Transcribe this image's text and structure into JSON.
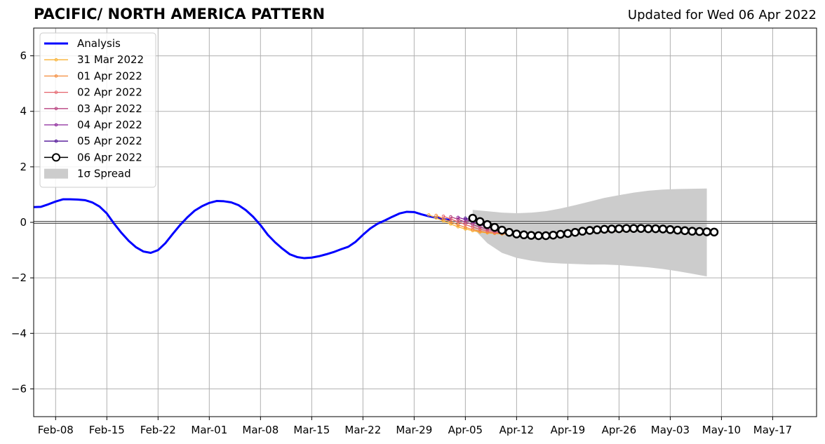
{
  "chart_data": {
    "type": "line",
    "title": "PACIFIC/ NORTH AMERICA PATTERN",
    "subtitle": "Updated for Wed 06 Apr 2022",
    "xlabel": "",
    "ylabel": "",
    "xlim": [
      "2022-02-05",
      "2022-05-23"
    ],
    "ylim": [
      -7,
      7
    ],
    "yticks": [
      -6,
      -4,
      -2,
      0,
      2,
      4,
      6
    ],
    "ytick_labels": [
      "−6",
      "−4",
      "−2",
      "0",
      "2",
      "4",
      "6"
    ],
    "xticks": [
      "2022-02-08",
      "2022-02-15",
      "2022-02-22",
      "2022-03-01",
      "2022-03-08",
      "2022-03-15",
      "2022-03-22",
      "2022-03-29",
      "2022-04-05",
      "2022-04-12",
      "2022-04-19",
      "2022-04-26",
      "2022-05-03",
      "2022-05-10",
      "2022-05-17"
    ],
    "xtick_labels": [
      "Feb-08",
      "Feb-15",
      "Feb-22",
      "Mar-01",
      "Mar-08",
      "Mar-15",
      "Mar-22",
      "Mar-29",
      "Apr-05",
      "Apr-12",
      "Apr-19",
      "Apr-26",
      "May-03",
      "May-10",
      "May-17"
    ],
    "grid": true,
    "legend_position": "top-left",
    "zero_line": true,
    "analysis": {
      "name": "Analysis",
      "color": "#0000ff",
      "x": [
        "2022-02-05",
        "2022-02-06",
        "2022-02-07",
        "2022-02-08",
        "2022-02-09",
        "2022-02-10",
        "2022-02-11",
        "2022-02-12",
        "2022-02-13",
        "2022-02-14",
        "2022-02-15",
        "2022-02-16",
        "2022-02-17",
        "2022-02-18",
        "2022-02-19",
        "2022-02-20",
        "2022-02-21",
        "2022-02-22",
        "2022-02-23",
        "2022-02-24",
        "2022-02-25",
        "2022-02-26",
        "2022-02-27",
        "2022-02-28",
        "2022-03-01",
        "2022-03-02",
        "2022-03-03",
        "2022-03-04",
        "2022-03-05",
        "2022-03-06",
        "2022-03-07",
        "2022-03-08",
        "2022-03-09",
        "2022-03-10",
        "2022-03-11",
        "2022-03-12",
        "2022-03-13",
        "2022-03-14",
        "2022-03-15",
        "2022-03-16",
        "2022-03-17",
        "2022-03-18",
        "2022-03-19",
        "2022-03-20",
        "2022-03-21",
        "2022-03-22",
        "2022-03-23",
        "2022-03-24",
        "2022-03-25",
        "2022-03-26",
        "2022-03-27",
        "2022-03-28",
        "2022-03-29",
        "2022-03-30",
        "2022-03-31",
        "2022-04-01",
        "2022-04-02",
        "2022-04-03"
      ],
      "y": [
        0.55,
        0.56,
        0.65,
        0.75,
        0.83,
        0.83,
        0.82,
        0.8,
        0.72,
        0.57,
        0.32,
        -0.05,
        -0.38,
        -0.67,
        -0.9,
        -1.05,
        -1.1,
        -1.0,
        -0.75,
        -0.42,
        -0.1,
        0.18,
        0.42,
        0.58,
        0.7,
        0.77,
        0.76,
        0.72,
        0.62,
        0.44,
        0.2,
        -0.1,
        -0.45,
        -0.72,
        -0.95,
        -1.15,
        -1.25,
        -1.29,
        -1.27,
        -1.22,
        -1.15,
        -1.07,
        -0.97,
        -0.88,
        -0.7,
        -0.45,
        -0.22,
        -0.05,
        0.07,
        0.2,
        0.32,
        0.38,
        0.37,
        0.29,
        0.22,
        0.17,
        0.12,
        0.08
      ]
    },
    "forecasts": [
      {
        "name": "31 Mar 2022",
        "color": "#f9b233",
        "start": "2022-03-31",
        "values": [
          0.27,
          0.16,
          0.05,
          -0.06,
          -0.16,
          -0.24,
          -0.3,
          -0.35,
          -0.38,
          -0.4,
          -0.42,
          -0.43,
          -0.44,
          -0.44,
          -0.44,
          -0.43,
          -0.42,
          -0.41,
          -0.4,
          -0.39,
          -0.38,
          -0.37,
          -0.36,
          -0.35,
          -0.34,
          -0.33,
          -0.32,
          -0.31,
          -0.3,
          -0.29,
          -0.28,
          -0.27,
          -0.26,
          -0.25,
          -0.25
        ]
      },
      {
        "name": "01 Apr 2022",
        "color": "#f58b3a",
        "start": "2022-04-01",
        "values": [
          0.25,
          0.13,
          0.02,
          -0.09,
          -0.18,
          -0.26,
          -0.32,
          -0.36,
          -0.39,
          -0.41,
          -0.42,
          -0.43,
          -0.43,
          -0.43,
          -0.42,
          -0.41,
          -0.4,
          -0.39,
          -0.38,
          -0.37,
          -0.36,
          -0.35,
          -0.34,
          -0.33,
          -0.32,
          -0.31,
          -0.3,
          -0.29,
          -0.28,
          -0.27,
          -0.27,
          -0.26,
          -0.26,
          -0.26,
          -0.26
        ]
      },
      {
        "name": "02 Apr 2022",
        "color": "#e5636b",
        "start": "2022-04-02",
        "values": [
          0.22,
          0.12,
          0.02,
          -0.08,
          -0.17,
          -0.25,
          -0.31,
          -0.36,
          -0.39,
          -0.41,
          -0.42,
          -0.43,
          -0.43,
          -0.42,
          -0.41,
          -0.4,
          -0.38,
          -0.36,
          -0.35,
          -0.34,
          -0.33,
          -0.32,
          -0.31,
          -0.3,
          -0.29,
          -0.28,
          -0.27,
          -0.26,
          -0.26,
          -0.26,
          -0.26,
          -0.26,
          -0.27,
          -0.27,
          -0.28
        ]
      },
      {
        "name": "03 Apr 2022",
        "color": "#b8407f",
        "start": "2022-04-03",
        "values": [
          0.2,
          0.11,
          0.01,
          -0.08,
          -0.17,
          -0.25,
          -0.31,
          -0.36,
          -0.39,
          -0.41,
          -0.42,
          -0.42,
          -0.41,
          -0.4,
          -0.39,
          -0.37,
          -0.35,
          -0.33,
          -0.31,
          -0.3,
          -0.29,
          -0.28,
          -0.27,
          -0.26,
          -0.25,
          -0.25,
          -0.25,
          -0.25,
          -0.26,
          -0.26,
          -0.27,
          -0.28,
          -0.29,
          -0.3,
          -0.3
        ]
      },
      {
        "name": "04 Apr 2022",
        "color": "#8b249a",
        "start": "2022-04-04",
        "values": [
          0.18,
          0.1,
          0.01,
          -0.08,
          -0.17,
          -0.25,
          -0.32,
          -0.37,
          -0.4,
          -0.42,
          -0.42,
          -0.42,
          -0.41,
          -0.39,
          -0.37,
          -0.35,
          -0.33,
          -0.31,
          -0.29,
          -0.28,
          -0.27,
          -0.26,
          -0.25,
          -0.24,
          -0.24,
          -0.24,
          -0.24,
          -0.25,
          -0.26,
          -0.27,
          -0.28,
          -0.29,
          -0.3,
          -0.31,
          -0.32
        ]
      },
      {
        "name": "05 Apr 2022",
        "color": "#4f1296",
        "start": "2022-04-05",
        "values": [
          0.15,
          0.07,
          -0.02,
          -0.11,
          -0.2,
          -0.28,
          -0.35,
          -0.4,
          -0.43,
          -0.45,
          -0.46,
          -0.46,
          -0.45,
          -0.43,
          -0.41,
          -0.39,
          -0.36,
          -0.33,
          -0.3,
          -0.28,
          -0.26,
          -0.25,
          -0.24,
          -0.23,
          -0.23,
          -0.23,
          -0.24,
          -0.25,
          -0.26,
          -0.27,
          -0.28,
          -0.3,
          -0.31,
          -0.33,
          -0.34
        ]
      },
      {
        "name": "06 Apr 2022",
        "color": "#000000",
        "start": "2022-04-06",
        "values": [
          0.15,
          0.03,
          -0.08,
          -0.18,
          -0.28,
          -0.36,
          -0.42,
          -0.45,
          -0.47,
          -0.48,
          -0.48,
          -0.46,
          -0.43,
          -0.4,
          -0.36,
          -0.32,
          -0.29,
          -0.27,
          -0.25,
          -0.24,
          -0.23,
          -0.22,
          -0.22,
          -0.22,
          -0.23,
          -0.23,
          -0.24,
          -0.26,
          -0.28,
          -0.3,
          -0.32,
          -0.33,
          -0.34,
          -0.35
        ]
      }
    ],
    "spread": {
      "name": "1σ Spread",
      "color": "#cccccc",
      "x": [
        "2022-04-06",
        "2022-04-08",
        "2022-04-10",
        "2022-04-12",
        "2022-04-14",
        "2022-04-16",
        "2022-04-18",
        "2022-04-20",
        "2022-04-22",
        "2022-04-24",
        "2022-04-26",
        "2022-04-28",
        "2022-04-30",
        "2022-05-02",
        "2022-05-04",
        "2022-05-06",
        "2022-05-08"
      ],
      "upper": [
        0.45,
        0.4,
        0.35,
        0.33,
        0.35,
        0.4,
        0.5,
        0.62,
        0.75,
        0.88,
        0.98,
        1.07,
        1.14,
        1.18,
        1.2,
        1.21,
        1.22
      ],
      "lower": [
        -0.2,
        -0.75,
        -1.1,
        -1.28,
        -1.38,
        -1.45,
        -1.48,
        -1.5,
        -1.52,
        -1.52,
        -1.54,
        -1.58,
        -1.62,
        -1.68,
        -1.76,
        -1.85,
        -1.95
      ]
    }
  }
}
